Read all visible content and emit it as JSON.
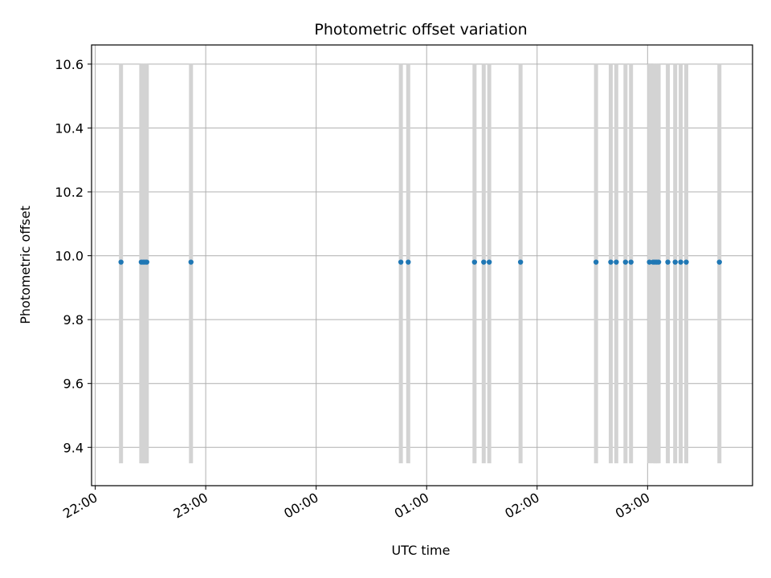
{
  "chart_data": {
    "type": "scatter",
    "title": "Photometric offset variation",
    "xlabel": "UTC time",
    "ylabel": "Photometric offset",
    "x_axis_kind": "time",
    "xlim": [
      "21:58",
      "03:57"
    ],
    "ylim": [
      9.28,
      10.66
    ],
    "x_ticks": [
      "22:00",
      "23:00",
      "00:00",
      "01:00",
      "02:00",
      "03:00"
    ],
    "y_ticks": [
      9.4,
      9.6,
      9.8,
      10.0,
      10.2,
      10.4,
      10.6
    ],
    "y_tick_labels": [
      "9.4",
      "9.6",
      "9.8",
      "10.0",
      "10.2",
      "10.4",
      "10.6"
    ],
    "grid": true,
    "legend": "none",
    "error_bar_range": [
      9.35,
      10.6
    ],
    "times": [
      "22:14",
      "22:25",
      "22:26",
      "22:27",
      "22:28",
      "22:52",
      "00:46",
      "00:50",
      "01:26",
      "01:31",
      "01:34",
      "01:51",
      "02:32",
      "02:40",
      "02:43",
      "02:48",
      "02:51",
      "03:01",
      "03:03",
      "03:04",
      "03:05",
      "03:06",
      "03:11",
      "03:15",
      "03:18",
      "03:21",
      "03:39"
    ],
    "values": [
      9.98,
      9.98,
      9.98,
      9.98,
      9.98,
      9.98,
      9.98,
      9.98,
      9.98,
      9.98,
      9.98,
      9.98,
      9.98,
      9.98,
      9.98,
      9.98,
      9.98,
      9.98,
      9.98,
      9.98,
      9.98,
      9.98,
      9.98,
      9.98,
      9.98,
      9.98,
      9.98
    ],
    "colors": {
      "marker": "#1f77b4",
      "error_bar": "#d3d3d3",
      "grid": "#b0b0b0"
    }
  }
}
